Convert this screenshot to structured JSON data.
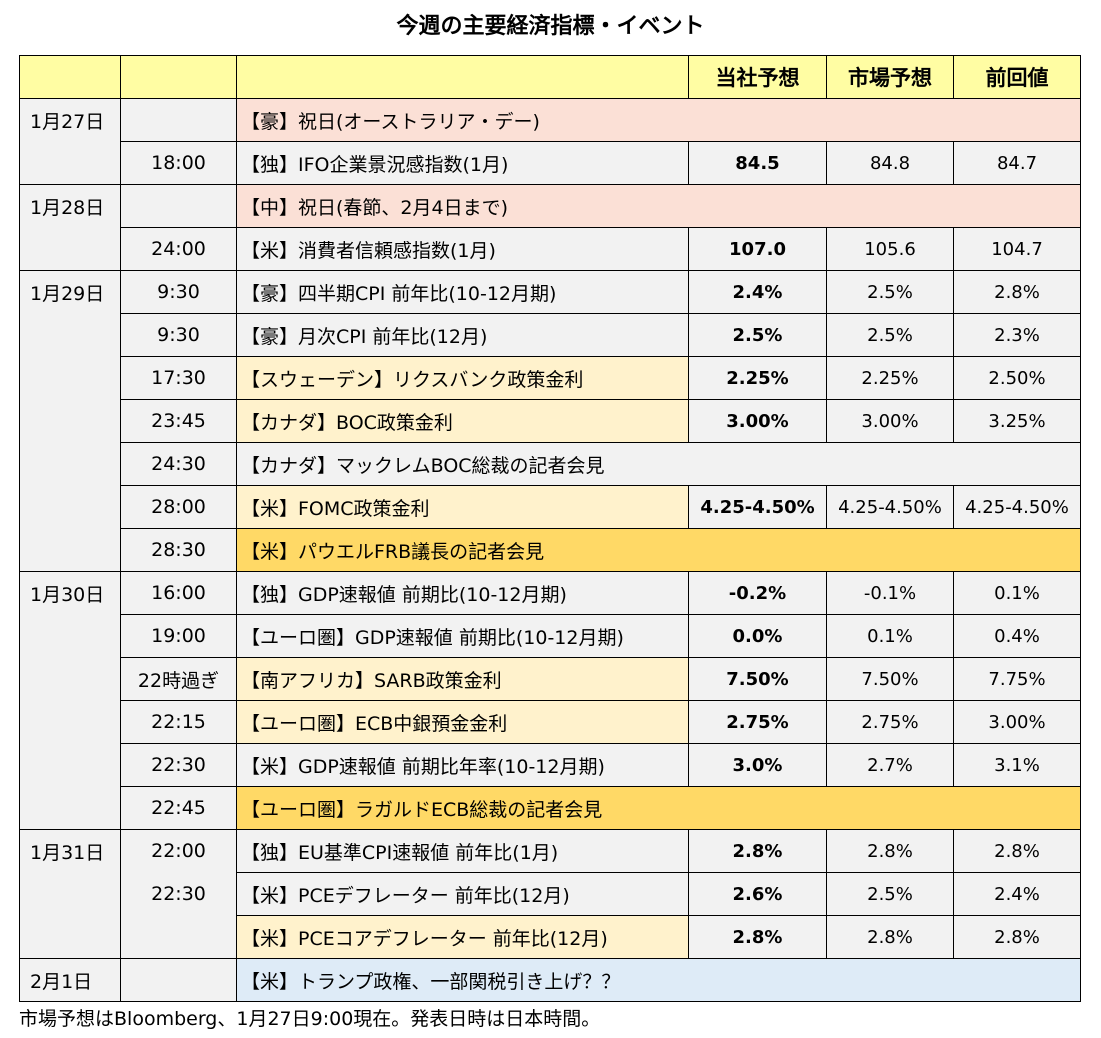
{
  "title": "今週の主要経済指標・イベント",
  "headers": {
    "company_forecast": "当社予想",
    "market_forecast": "市場予想",
    "previous": "前回値"
  },
  "rows": [
    {
      "date": "1月27日",
      "time": "",
      "event": "【豪】祝日(オーストラリア・デー)",
      "company": "",
      "market": "",
      "previous": ""
    },
    {
      "date": "",
      "time": "18:00",
      "event": "【独】IFO企業景況感指数(1月)",
      "company": "84.5",
      "market": "84.8",
      "previous": "84.7"
    },
    {
      "date": "1月28日",
      "time": "",
      "event": "【中】祝日(春節、2月4日まで)",
      "company": "",
      "market": "",
      "previous": ""
    },
    {
      "date": "",
      "time": "24:00",
      "event": "【米】消費者信頼感指数(1月)",
      "company": "107.0",
      "market": "105.6",
      "previous": "104.7"
    },
    {
      "date": "1月29日",
      "time": "9:30",
      "event": "【豪】四半期CPI 前年比(10-12月期)",
      "company": "2.4%",
      "market": "2.5%",
      "previous": "2.8%"
    },
    {
      "date": "",
      "time": "9:30",
      "event": "【豪】月次CPI 前年比(12月)",
      "company": "2.5%",
      "market": "2.5%",
      "previous": "2.3%"
    },
    {
      "date": "",
      "time": "17:30",
      "event": "【スウェーデン】リクスバンク政策金利",
      "company": "2.25%",
      "market": "2.25%",
      "previous": "2.50%"
    },
    {
      "date": "",
      "time": "23:45",
      "event": "【カナダ】BOC政策金利",
      "company": "3.00%",
      "market": "3.00%",
      "previous": "3.25%"
    },
    {
      "date": "",
      "time": "24:30",
      "event": "【カナダ】マックレムBOC総裁の記者会見",
      "company": "",
      "market": "",
      "previous": ""
    },
    {
      "date": "",
      "time": "28:00",
      "event": "【米】FOMC政策金利",
      "company": "4.25-4.50%",
      "market": "4.25-4.50%",
      "previous": "4.25-4.50%"
    },
    {
      "date": "",
      "time": "28:30",
      "event": "【米】パウエルFRB議長の記者会見",
      "company": "",
      "market": "",
      "previous": ""
    },
    {
      "date": "1月30日",
      "time": "16:00",
      "event": "【独】GDP速報値 前期比(10-12月期)",
      "company": "-0.2%",
      "market": "-0.1%",
      "previous": "0.1%"
    },
    {
      "date": "",
      "time": "19:00",
      "event": "【ユーロ圏】GDP速報値 前期比(10-12月期)",
      "company": "0.0%",
      "market": "0.1%",
      "previous": "0.4%"
    },
    {
      "date": "",
      "time": "22時過ぎ",
      "event": "【南アフリカ】SARB政策金利",
      "company": "7.50%",
      "market": "7.50%",
      "previous": "7.75%"
    },
    {
      "date": "",
      "time": "22:15",
      "event": "【ユーロ圏】ECB中銀預金金利",
      "company": "2.75%",
      "market": "2.75%",
      "previous": "3.00%"
    },
    {
      "date": "",
      "time": "22:30",
      "event": "【米】GDP速報値 前期比年率(10-12月期)",
      "company": "3.0%",
      "market": "2.7%",
      "previous": "3.1%"
    },
    {
      "date": "",
      "time": "22:45",
      "event": "【ユーロ圏】ラガルドECB総裁の記者会見",
      "company": "",
      "market": "",
      "previous": ""
    },
    {
      "date": "1月31日",
      "time": "22:00",
      "event": "【独】EU基準CPI速報値 前年比(1月)",
      "company": "2.8%",
      "market": "2.8%",
      "previous": "2.8%"
    },
    {
      "date": "",
      "time": "22:30",
      "event": "【米】PCEデフレーター 前年比(12月)",
      "company": "2.6%",
      "market": "2.5%",
      "previous": "2.4%"
    },
    {
      "date": "",
      "time": "",
      "event": "【米】PCEコアデフレーター 前年比(12月)",
      "company": "2.8%",
      "market": "2.8%",
      "previous": "2.8%"
    },
    {
      "date": "2月1日",
      "time": "",
      "event": "【米】トランプ政権、一部関税引き上げ？？",
      "company": "",
      "market": "",
      "previous": ""
    }
  ],
  "note": "市場予想はBloomberg、1月27日9:00現在。発表日時は日本時間。",
  "colors": {
    "header": "#fffda3",
    "holiday": "#fbe0d6",
    "central_bank": "#fff2cc",
    "press": "#ffd966",
    "trump": "#deebf7",
    "default": "#f2f2f2"
  }
}
